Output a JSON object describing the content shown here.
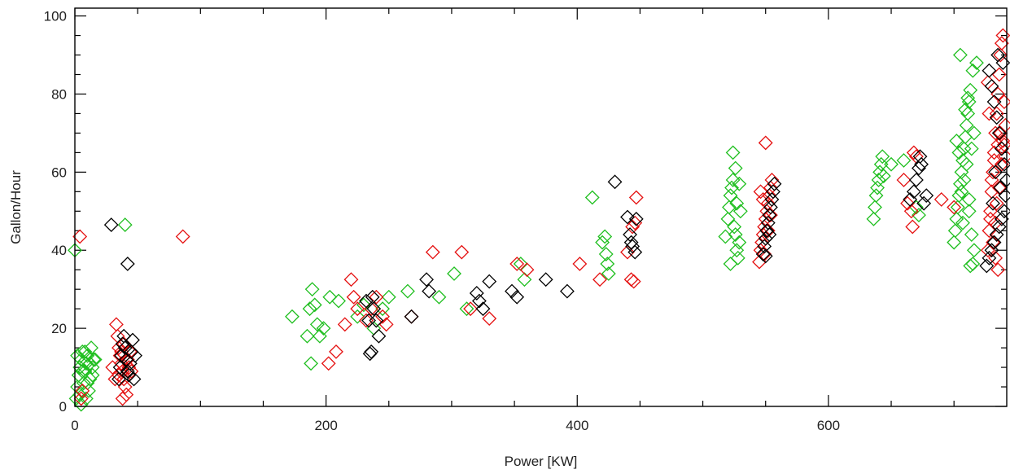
{
  "chart_data": {
    "type": "scatter",
    "title": "",
    "xlabel": "Power [KW]",
    "ylabel": "Gallon/Hour",
    "xlim": [
      0,
      742
    ],
    "ylim": [
      0,
      102
    ],
    "x_ticks": [
      0,
      200,
      400,
      600
    ],
    "y_ticks": [
      0,
      20,
      40,
      60,
      80,
      100
    ],
    "x_minor_step": 50,
    "y_minor_step": 5,
    "marker": "diamond",
    "grid": false,
    "legend": "none",
    "series": [
      {
        "color": "#1fbf1f",
        "points": [
          [
            0,
            40
          ],
          [
            40,
            46.5
          ],
          [
            1,
            2
          ],
          [
            2,
            5
          ],
          [
            3,
            8
          ],
          [
            4,
            10
          ],
          [
            5,
            12
          ],
          [
            6,
            14
          ],
          [
            7,
            6
          ],
          [
            8,
            9
          ],
          [
            9,
            11
          ],
          [
            10,
            13
          ],
          [
            11,
            4
          ],
          [
            12,
            7
          ],
          [
            13,
            15
          ],
          [
            14,
            10
          ],
          [
            15,
            12
          ],
          [
            2,
            13
          ],
          [
            4,
            3
          ],
          [
            6,
            9
          ],
          [
            8,
            14
          ],
          [
            10,
            6
          ],
          [
            12,
            11
          ],
          [
            14,
            8
          ],
          [
            16,
            12
          ],
          [
            5,
            0.5
          ],
          [
            9,
            2
          ],
          [
            173,
            23
          ],
          [
            185,
            18
          ],
          [
            187,
            25
          ],
          [
            188,
            11
          ],
          [
            189,
            30
          ],
          [
            191,
            26
          ],
          [
            193,
            21
          ],
          [
            195,
            18
          ],
          [
            198,
            20
          ],
          [
            203,
            28
          ],
          [
            210,
            27
          ],
          [
            225,
            23
          ],
          [
            230,
            26
          ],
          [
            238,
            20
          ],
          [
            245,
            25
          ],
          [
            250,
            28
          ],
          [
            265,
            29.5
          ],
          [
            290,
            28
          ],
          [
            302,
            34
          ],
          [
            312,
            25
          ],
          [
            355,
            36.5
          ],
          [
            358,
            32.5
          ],
          [
            412,
            53.5
          ],
          [
            420,
            42
          ],
          [
            422,
            43.5
          ],
          [
            423,
            39
          ],
          [
            424,
            36.5
          ],
          [
            425,
            34
          ],
          [
            518,
            43.5
          ],
          [
            520,
            48
          ],
          [
            521,
            51
          ],
          [
            522,
            54
          ],
          [
            523,
            56
          ],
          [
            524,
            58
          ],
          [
            525,
            46
          ],
          [
            526,
            44
          ],
          [
            527,
            40
          ],
          [
            528,
            38
          ],
          [
            529,
            42
          ],
          [
            530,
            50
          ],
          [
            524,
            65
          ],
          [
            526,
            61
          ],
          [
            522,
            36.5
          ],
          [
            527,
            52
          ],
          [
            529,
            57
          ],
          [
            636,
            48
          ],
          [
            637,
            51
          ],
          [
            638,
            54
          ],
          [
            639,
            56
          ],
          [
            640,
            58
          ],
          [
            641,
            60
          ],
          [
            642,
            62
          ],
          [
            643,
            64
          ],
          [
            644,
            59
          ],
          [
            650,
            62
          ],
          [
            660,
            63
          ],
          [
            670,
            51
          ],
          [
            672,
            49
          ],
          [
            700,
            42
          ],
          [
            701,
            45
          ],
          [
            702,
            48
          ],
          [
            703,
            51
          ],
          [
            704,
            54
          ],
          [
            705,
            57
          ],
          [
            706,
            60
          ],
          [
            707,
            63
          ],
          [
            708,
            66
          ],
          [
            709,
            69
          ],
          [
            710,
            72
          ],
          [
            711,
            75
          ],
          [
            712,
            78
          ],
          [
            713,
            81
          ],
          [
            704,
            65
          ],
          [
            706,
            55
          ],
          [
            708,
            58
          ],
          [
            710,
            62
          ],
          [
            712,
            50
          ],
          [
            714,
            44
          ],
          [
            713,
            36
          ],
          [
            715,
            36.5
          ],
          [
            716,
            40
          ],
          [
            705,
            90
          ],
          [
            718,
            88
          ],
          [
            715,
            86
          ],
          [
            702,
            68
          ],
          [
            709,
            76
          ],
          [
            711,
            79
          ],
          [
            707,
            47
          ],
          [
            712,
            53
          ],
          [
            714,
            66
          ],
          [
            716,
            70
          ]
        ]
      },
      {
        "color": "#e51010",
        "points": [
          [
            4,
            43.5
          ],
          [
            86,
            43.5
          ],
          [
            5,
            2
          ],
          [
            6,
            4
          ],
          [
            33,
            21
          ],
          [
            34,
            18
          ],
          [
            35,
            15
          ],
          [
            36,
            13
          ],
          [
            37,
            11
          ],
          [
            38,
            9
          ],
          [
            39,
            7
          ],
          [
            40,
            5
          ],
          [
            41,
            3
          ],
          [
            42,
            12
          ],
          [
            43,
            10
          ],
          [
            35,
            8
          ],
          [
            37,
            14
          ],
          [
            39,
            16
          ],
          [
            41,
            12
          ],
          [
            38,
            2
          ],
          [
            30,
            10
          ],
          [
            32,
            7
          ],
          [
            44,
            14
          ],
          [
            45,
            9
          ],
          [
            202,
            11
          ],
          [
            208,
            14
          ],
          [
            215,
            21
          ],
          [
            220,
            32.5
          ],
          [
            222,
            28
          ],
          [
            225,
            25
          ],
          [
            232,
            22
          ],
          [
            236,
            25
          ],
          [
            240,
            28
          ],
          [
            245,
            23
          ],
          [
            248,
            21
          ],
          [
            268,
            23
          ],
          [
            285,
            39.5
          ],
          [
            308,
            39.5
          ],
          [
            315,
            25
          ],
          [
            330,
            22.5
          ],
          [
            352,
            36.5
          ],
          [
            360,
            35
          ],
          [
            402,
            36.5
          ],
          [
            418,
            32.5
          ],
          [
            440,
            39.5
          ],
          [
            443,
            32.5
          ],
          [
            444,
            46
          ],
          [
            446,
            47
          ],
          [
            447,
            53.5
          ],
          [
            445,
            32
          ],
          [
            545,
            37
          ],
          [
            546,
            40
          ],
          [
            547,
            42
          ],
          [
            548,
            44
          ],
          [
            549,
            46
          ],
          [
            550,
            48
          ],
          [
            551,
            50
          ],
          [
            552,
            52
          ],
          [
            553,
            54
          ],
          [
            554,
            56
          ],
          [
            555,
            58
          ],
          [
            550,
            67.5
          ],
          [
            548,
            53
          ],
          [
            552,
            45
          ],
          [
            546,
            55
          ],
          [
            554,
            49
          ],
          [
            549,
            39
          ],
          [
            660,
            58
          ],
          [
            663,
            52
          ],
          [
            666,
            50
          ],
          [
            667,
            46
          ],
          [
            668,
            65
          ],
          [
            670,
            64
          ],
          [
            690,
            53
          ],
          [
            700,
            51
          ],
          [
            727,
            40
          ],
          [
            728,
            45
          ],
          [
            729,
            50
          ],
          [
            730,
            55
          ],
          [
            731,
            60
          ],
          [
            732,
            65
          ],
          [
            733,
            70
          ],
          [
            734,
            75
          ],
          [
            735,
            80
          ],
          [
            736,
            85
          ],
          [
            737,
            90
          ],
          [
            738,
            93
          ],
          [
            739,
            95
          ],
          [
            733,
            38
          ],
          [
            735,
            35
          ],
          [
            731,
            42
          ],
          [
            729,
            48
          ],
          [
            734,
            52
          ],
          [
            736,
            56
          ],
          [
            738,
            62
          ],
          [
            740,
            67
          ],
          [
            741,
            72
          ],
          [
            728,
            75
          ],
          [
            730,
            58
          ],
          [
            732,
            63
          ],
          [
            735,
            67
          ],
          [
            737,
            70
          ],
          [
            739,
            68
          ],
          [
            741,
            64
          ],
          [
            733,
            47
          ],
          [
            727,
            83
          ],
          [
            740,
            78
          ]
        ]
      },
      {
        "color": "#000000",
        "points": [
          [
            29,
            46.5
          ],
          [
            42,
            36.5
          ],
          [
            35,
            7
          ],
          [
            36,
            10
          ],
          [
            37,
            13
          ],
          [
            38,
            16
          ],
          [
            39,
            18
          ],
          [
            40,
            15
          ],
          [
            41,
            12
          ],
          [
            42,
            9
          ],
          [
            43,
            8
          ],
          [
            44,
            11
          ],
          [
            45,
            14
          ],
          [
            46,
            17
          ],
          [
            47,
            7
          ],
          [
            48,
            13
          ],
          [
            232,
            27
          ],
          [
            234,
            22
          ],
          [
            235,
            13.5
          ],
          [
            236,
            14
          ],
          [
            237,
            28
          ],
          [
            238,
            25
          ],
          [
            240,
            22
          ],
          [
            242,
            18
          ],
          [
            268,
            23
          ],
          [
            280,
            32.5
          ],
          [
            282,
            29.5
          ],
          [
            320,
            29
          ],
          [
            322,
            27
          ],
          [
            325,
            25
          ],
          [
            330,
            32
          ],
          [
            348,
            29.5
          ],
          [
            352,
            28
          ],
          [
            375,
            32.5
          ],
          [
            392,
            29.5
          ],
          [
            430,
            57.5
          ],
          [
            440,
            48.5
          ],
          [
            442,
            44
          ],
          [
            443,
            42
          ],
          [
            444,
            41
          ],
          [
            446,
            39.5
          ],
          [
            447,
            48
          ],
          [
            548,
            39
          ],
          [
            549,
            41
          ],
          [
            550,
            43
          ],
          [
            551,
            45
          ],
          [
            552,
            47
          ],
          [
            553,
            49
          ],
          [
            554,
            51
          ],
          [
            555,
            53
          ],
          [
            556,
            55
          ],
          [
            557,
            57
          ],
          [
            550,
            38.5
          ],
          [
            553,
            44
          ],
          [
            665,
            53
          ],
          [
            668,
            55
          ],
          [
            670,
            58
          ],
          [
            672,
            61
          ],
          [
            673,
            64
          ],
          [
            674,
            62
          ],
          [
            676,
            52
          ],
          [
            678,
            54
          ],
          [
            726,
            36
          ],
          [
            728,
            38
          ],
          [
            730,
            40
          ],
          [
            732,
            42
          ],
          [
            734,
            44
          ],
          [
            736,
            46
          ],
          [
            738,
            48
          ],
          [
            740,
            50
          ],
          [
            741,
            54
          ],
          [
            742,
            58
          ],
          [
            740,
            62
          ],
          [
            738,
            66
          ],
          [
            736,
            70
          ],
          [
            734,
            74
          ],
          [
            732,
            78
          ],
          [
            730,
            82
          ],
          [
            728,
            86
          ],
          [
            735,
            90
          ],
          [
            739,
            88
          ],
          [
            731,
            52
          ],
          [
            733,
            60
          ],
          [
            737,
            56
          ]
        ]
      }
    ]
  }
}
